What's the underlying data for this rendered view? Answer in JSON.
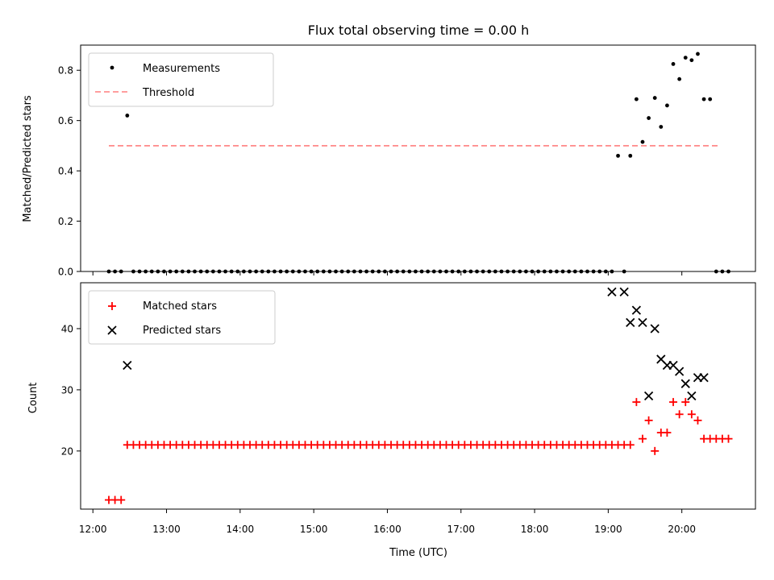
{
  "chart_data": [
    {
      "type": "scatter",
      "title": "Flux total observing time = 0.00 h",
      "xlabel": "",
      "ylabel": "Matched/Predicted stars",
      "ylim": [
        0,
        0.9
      ],
      "xlim": [
        "11:50",
        "21:00"
      ],
      "yticks": [
        0.0,
        0.2,
        0.4,
        0.6,
        0.8
      ],
      "ytick_labels": [
        "0.0",
        "0.2",
        "0.4",
        "0.6",
        "0.8"
      ],
      "legend_position": "top-left",
      "legend": [
        {
          "label": "Measurements",
          "marker": "dot",
          "color": "#000000"
        },
        {
          "label": "Threshold",
          "marker": "dashed-line",
          "color": "#ff7f7f"
        }
      ],
      "threshold": {
        "value": 0.5,
        "x_start": "12:13",
        "x_end": "20:31",
        "color": "#ff7f7f"
      },
      "series": [
        {
          "name": "Measurements",
          "color": "#000000",
          "x": [
            "12:13",
            "12:18",
            "12:23",
            "12:28",
            "12:33",
            "12:38",
            "12:43",
            "12:48",
            "12:53",
            "12:58",
            "13:03",
            "13:08",
            "13:13",
            "13:18",
            "13:23",
            "13:28",
            "13:33",
            "13:38",
            "13:43",
            "13:48",
            "13:53",
            "13:58",
            "14:03",
            "14:08",
            "14:13",
            "14:18",
            "14:23",
            "14:28",
            "14:33",
            "14:38",
            "14:43",
            "14:48",
            "14:53",
            "14:58",
            "15:03",
            "15:08",
            "15:13",
            "15:18",
            "15:23",
            "15:28",
            "15:33",
            "15:38",
            "15:43",
            "15:48",
            "15:53",
            "15:58",
            "16:03",
            "16:08",
            "16:13",
            "16:18",
            "16:23",
            "16:28",
            "16:33",
            "16:38",
            "16:43",
            "16:48",
            "16:53",
            "16:58",
            "17:03",
            "17:08",
            "17:13",
            "17:18",
            "17:23",
            "17:28",
            "17:33",
            "17:38",
            "17:43",
            "17:48",
            "17:53",
            "17:58",
            "18:03",
            "18:08",
            "18:13",
            "18:18",
            "18:23",
            "18:28",
            "18:33",
            "18:38",
            "18:43",
            "18:48",
            "18:53",
            "18:58",
            "19:03",
            "19:08",
            "19:13",
            "19:18",
            "19:23",
            "19:28",
            "19:33",
            "19:38",
            "19:43",
            "19:48",
            "19:53",
            "19:58",
            "20:03",
            "20:08",
            "20:13",
            "20:18",
            "20:23",
            "20:28",
            "20:33",
            "20:38"
          ],
          "y": [
            0,
            0,
            0,
            0.62,
            0,
            0,
            0,
            0,
            0,
            0,
            0,
            0,
            0,
            0,
            0,
            0,
            0,
            0,
            0,
            0,
            0,
            0,
            0,
            0,
            0,
            0,
            0,
            0,
            0,
            0,
            0,
            0,
            0,
            0,
            0,
            0,
            0,
            0,
            0,
            0,
            0,
            0,
            0,
            0,
            0,
            0,
            0,
            0,
            0,
            0,
            0,
            0,
            0,
            0,
            0,
            0,
            0,
            0,
            0,
            0,
            0,
            0,
            0,
            0,
            0,
            0,
            0,
            0,
            0,
            0,
            0,
            0,
            0,
            0,
            0,
            0,
            0,
            0,
            0,
            0,
            0,
            0,
            0,
            0.46,
            0,
            0.46,
            0.685,
            0.515,
            0.61,
            0.69,
            0.575,
            0.66,
            0.825,
            0.765,
            0.85,
            0.84,
            0.865,
            0.685,
            0.685,
            0,
            0,
            0
          ]
        }
      ]
    },
    {
      "type": "scatter",
      "title": "",
      "xlabel": "Time (UTC)",
      "ylabel": "Count",
      "ylim": [
        10.5,
        47.5
      ],
      "xlim": [
        "11:50",
        "21:00"
      ],
      "yticks": [
        20,
        30,
        40
      ],
      "ytick_labels": [
        "20",
        "30",
        "40"
      ],
      "xtick_labels": [
        "12:00",
        "13:00",
        "14:00",
        "15:00",
        "16:00",
        "17:00",
        "18:00",
        "19:00",
        "20:00"
      ],
      "legend_position": "top-left",
      "legend": [
        {
          "label": "Matched stars",
          "marker": "plus",
          "color": "#ff0000"
        },
        {
          "label": "Predicted stars",
          "marker": "x",
          "color": "#000000"
        }
      ],
      "series": [
        {
          "name": "Matched stars",
          "color": "#ff0000",
          "marker": "plus",
          "x": [
            "12:13",
            "12:18",
            "12:23",
            "12:28",
            "12:33",
            "12:38",
            "12:43",
            "12:48",
            "12:53",
            "12:58",
            "13:03",
            "13:08",
            "13:13",
            "13:18",
            "13:23",
            "13:28",
            "13:33",
            "13:38",
            "13:43",
            "13:48",
            "13:53",
            "13:58",
            "14:03",
            "14:08",
            "14:13",
            "14:18",
            "14:23",
            "14:28",
            "14:33",
            "14:38",
            "14:43",
            "14:48",
            "14:53",
            "14:58",
            "15:03",
            "15:08",
            "15:13",
            "15:18",
            "15:23",
            "15:28",
            "15:33",
            "15:38",
            "15:43",
            "15:48",
            "15:53",
            "15:58",
            "16:03",
            "16:08",
            "16:13",
            "16:18",
            "16:23",
            "16:28",
            "16:33",
            "16:38",
            "16:43",
            "16:48",
            "16:53",
            "16:58",
            "17:03",
            "17:08",
            "17:13",
            "17:18",
            "17:23",
            "17:28",
            "17:33",
            "17:38",
            "17:43",
            "17:48",
            "17:53",
            "17:58",
            "18:03",
            "18:08",
            "18:13",
            "18:18",
            "18:23",
            "18:28",
            "18:33",
            "18:38",
            "18:43",
            "18:48",
            "18:53",
            "18:58",
            "19:03",
            "19:08",
            "19:13",
            "19:18",
            "19:23",
            "19:28",
            "19:33",
            "19:38",
            "19:43",
            "19:48",
            "19:53",
            "19:58",
            "20:03",
            "20:08",
            "20:13",
            "20:18",
            "20:23",
            "20:28",
            "20:33",
            "20:38"
          ],
          "y": [
            12,
            12,
            12,
            21,
            21,
            21,
            21,
            21,
            21,
            21,
            21,
            21,
            21,
            21,
            21,
            21,
            21,
            21,
            21,
            21,
            21,
            21,
            21,
            21,
            21,
            21,
            21,
            21,
            21,
            21,
            21,
            21,
            21,
            21,
            21,
            21,
            21,
            21,
            21,
            21,
            21,
            21,
            21,
            21,
            21,
            21,
            21,
            21,
            21,
            21,
            21,
            21,
            21,
            21,
            21,
            21,
            21,
            21,
            21,
            21,
            21,
            21,
            21,
            21,
            21,
            21,
            21,
            21,
            21,
            21,
            21,
            21,
            21,
            21,
            21,
            21,
            21,
            21,
            21,
            21,
            21,
            21,
            21,
            21,
            21,
            21,
            28,
            22,
            25,
            20,
            23,
            23,
            28,
            26,
            28,
            26,
            25,
            22,
            22,
            22,
            22,
            22
          ]
        },
        {
          "name": "Predicted stars",
          "color": "#000000",
          "marker": "x",
          "x": [
            "12:28",
            "19:03",
            "19:13",
            "19:18",
            "19:23",
            "19:28",
            "19:33",
            "19:38",
            "19:43",
            "19:48",
            "19:53",
            "19:58",
            "20:03",
            "20:08",
            "20:13",
            "20:18"
          ],
          "y": [
            34,
            46,
            46,
            41,
            43,
            41,
            29,
            40,
            35,
            34,
            34,
            33,
            31,
            29,
            32,
            32
          ]
        }
      ]
    }
  ]
}
